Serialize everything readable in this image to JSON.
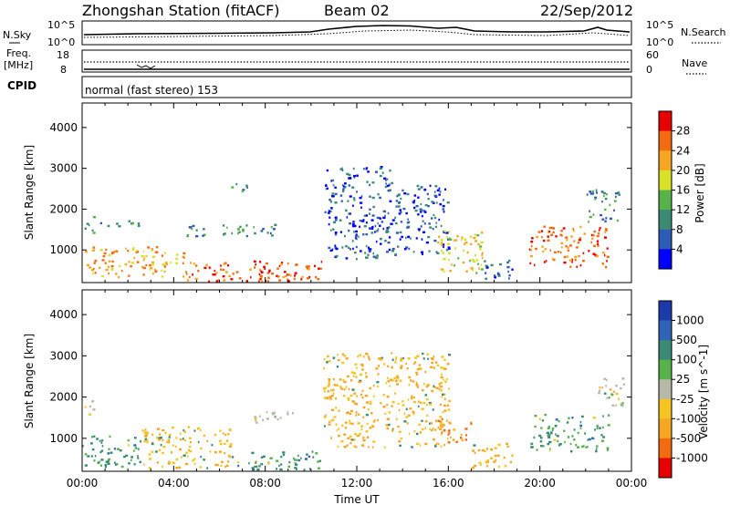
{
  "header": {
    "station": "Zhongshan Station (fitACF)",
    "beam": "Beam 02",
    "date": "22/Sep/2012",
    "cpid_label": "CPID",
    "cpid_value": "normal (fast stereo) 153"
  },
  "strip_panels": {
    "nsky": {
      "left_label": "N.Sky",
      "left_ticks": [
        "10^5",
        "10^0"
      ],
      "right_ticks": [
        "10^5",
        "10^0"
      ],
      "right_label": "N.Search"
    },
    "freq": {
      "left_label_1": "Freq.",
      "left_label_2": "[MHz]",
      "left_ticks": [
        "18",
        "8"
      ],
      "right_ticks": [
        "60",
        "0"
      ],
      "right_label": "Nave"
    }
  },
  "chart_data": [
    {
      "type": "heatmap",
      "name": "power",
      "ylabel": "Slant Range [km]",
      "yticks": [
        "1000",
        "2000",
        "3000",
        "4000"
      ],
      "ylim": [
        200,
        4600
      ],
      "xlim": [
        0,
        24
      ],
      "colorbar": {
        "label": "Power [dB]",
        "ticks": [
          "4",
          "8",
          "12",
          "16",
          "20",
          "24",
          "28"
        ],
        "colors": [
          "#0000ff",
          "#2e5bb5",
          "#3b8a73",
          "#57b24a",
          "#d9e02a",
          "#f5a623",
          "#f26b10",
          "#e60000"
        ]
      },
      "regions": [
        {
          "t0": 0.0,
          "t1": 4.5,
          "r0": 350,
          "r1": 1100,
          "level": 20
        },
        {
          "t0": 0.1,
          "t1": 0.5,
          "r0": 1400,
          "r1": 1950,
          "level": 12
        },
        {
          "t0": 0.5,
          "t1": 2.5,
          "r0": 1600,
          "r1": 1750,
          "level": 8
        },
        {
          "t0": 4.5,
          "t1": 10.5,
          "r0": 250,
          "r1": 750,
          "level": 24
        },
        {
          "t0": 7.5,
          "t1": 9.0,
          "r0": 300,
          "r1": 600,
          "level": 28
        },
        {
          "t0": 4.5,
          "t1": 8.5,
          "r0": 1350,
          "r1": 1650,
          "level": 8
        },
        {
          "t0": 6.5,
          "t1": 7.5,
          "r0": 2450,
          "r1": 2650,
          "level": 8
        },
        {
          "t0": 10.5,
          "t1": 13.5,
          "r0": 800,
          "r1": 3100,
          "level": 4
        },
        {
          "t0": 13.5,
          "t1": 16.0,
          "r0": 900,
          "r1": 2600,
          "level": 4
        },
        {
          "t0": 15.5,
          "t1": 17.5,
          "r0": 400,
          "r1": 1500,
          "level": 16
        },
        {
          "t0": 17.5,
          "t1": 18.8,
          "r0": 250,
          "r1": 800,
          "level": 4
        },
        {
          "t0": 19.5,
          "t1": 23.0,
          "r0": 600,
          "r1": 1600,
          "level": 24
        },
        {
          "t0": 22.0,
          "t1": 23.5,
          "r0": 1700,
          "r1": 2500,
          "level": 8
        }
      ]
    },
    {
      "type": "heatmap",
      "name": "velocity",
      "ylabel": "Slant Range [km]",
      "yticks": [
        "1000",
        "2000",
        "3000",
        "4000"
      ],
      "ylim": [
        200,
        4600
      ],
      "xlim": [
        0,
        24
      ],
      "xlabel": "Time UT",
      "xticks": [
        "00:00",
        "04:00",
        "08:00",
        "12:00",
        "16:00",
        "20:00",
        "00:00"
      ],
      "colorbar": {
        "label": "Velocity [m s^-1]",
        "ticks": [
          "1000",
          "500",
          "100",
          "25",
          "-25",
          "-100",
          "-500",
          "-1000"
        ],
        "colors": [
          "#1c3aa8",
          "#2e63b5",
          "#3b8a73",
          "#57b24a",
          "#b8b8a8",
          "#f5c422",
          "#f5a623",
          "#f26b10",
          "#e60000"
        ]
      },
      "regions": [
        {
          "t0": 0.0,
          "t1": 2.5,
          "r0": 300,
          "r1": 1100,
          "level": 100
        },
        {
          "t0": 2.5,
          "t1": 6.5,
          "r0": 300,
          "r1": 1300,
          "level": -100
        },
        {
          "t0": 0.1,
          "t1": 0.6,
          "r0": 1600,
          "r1": 1950,
          "level": 0
        },
        {
          "t0": 6.5,
          "t1": 10.5,
          "r0": 250,
          "r1": 700,
          "level": 100
        },
        {
          "t0": 7.5,
          "t1": 9.5,
          "r0": 1400,
          "r1": 1700,
          "level": 0
        },
        {
          "t0": 10.5,
          "t1": 16.0,
          "r0": 800,
          "r1": 3100,
          "level": -100
        },
        {
          "t0": 15.5,
          "t1": 17.0,
          "r0": 900,
          "r1": 1500,
          "level": -500
        },
        {
          "t0": 17.0,
          "t1": 18.8,
          "r0": 300,
          "r1": 900,
          "level": -100
        },
        {
          "t0": 19.5,
          "t1": 23.0,
          "r0": 700,
          "r1": 1600,
          "level": 100
        },
        {
          "t0": 22.5,
          "t1": 23.8,
          "r0": 1800,
          "r1": 2500,
          "level": 0
        }
      ]
    }
  ]
}
